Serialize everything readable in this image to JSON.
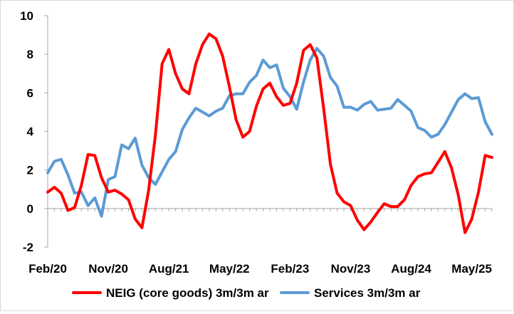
{
  "chart_data": {
    "type": "line",
    "title": "",
    "xlabel": "",
    "ylabel": "",
    "ylim": [
      -2,
      10
    ],
    "yticks": [
      -2,
      0,
      2,
      4,
      6,
      8,
      10
    ],
    "grid": false,
    "legend_position": "bottom",
    "x_tick_labels": [
      "Feb/20",
      "Nov/20",
      "Aug/21",
      "May/22",
      "Feb/23",
      "Nov/23",
      "Aug/24",
      "May/25"
    ],
    "x_tick_index_step": 9,
    "series": [
      {
        "name": "NEIG (core goods) 3m/3m ar",
        "color": "#ff0000",
        "values": [
          0.85,
          1.1,
          0.8,
          -0.1,
          0.05,
          1.2,
          2.8,
          2.75,
          1.6,
          0.85,
          0.95,
          0.75,
          0.45,
          -0.55,
          -1.0,
          0.95,
          3.8,
          7.5,
          8.25,
          7.0,
          6.2,
          5.95,
          7.5,
          8.5,
          9.05,
          8.8,
          7.9,
          6.3,
          4.6,
          3.7,
          4.0,
          5.3,
          6.2,
          6.5,
          5.8,
          5.35,
          5.45,
          6.5,
          8.2,
          8.5,
          7.8,
          5.2,
          2.3,
          0.8,
          0.35,
          0.15,
          -0.6,
          -1.1,
          -0.7,
          -0.2,
          0.25,
          0.1,
          0.1,
          0.45,
          1.2,
          1.65,
          1.8,
          1.85,
          2.4,
          2.95,
          2.1,
          0.7,
          -1.25,
          -0.55,
          0.85,
          2.75,
          2.65
        ]
      },
      {
        "name": "Services 3m/3m ar",
        "color": "#5b9bd5",
        "values": [
          1.85,
          2.45,
          2.55,
          1.75,
          0.8,
          0.85,
          0.15,
          0.55,
          -0.4,
          1.5,
          1.65,
          3.3,
          3.1,
          3.65,
          2.25,
          1.6,
          1.25,
          1.9,
          2.55,
          2.95,
          4.1,
          4.7,
          5.2,
          5.0,
          4.8,
          5.05,
          5.2,
          5.85,
          5.95,
          5.95,
          6.55,
          6.9,
          7.7,
          7.3,
          7.45,
          6.25,
          5.8,
          5.15,
          6.55,
          7.7,
          8.3,
          7.9,
          6.8,
          6.35,
          5.25,
          5.25,
          5.1,
          5.4,
          5.55,
          5.1,
          5.15,
          5.2,
          5.65,
          5.35,
          5.05,
          4.2,
          4.05,
          3.7,
          3.85,
          4.35,
          5.0,
          5.65,
          5.95,
          5.7,
          5.75,
          4.5,
          3.85
        ]
      }
    ]
  }
}
